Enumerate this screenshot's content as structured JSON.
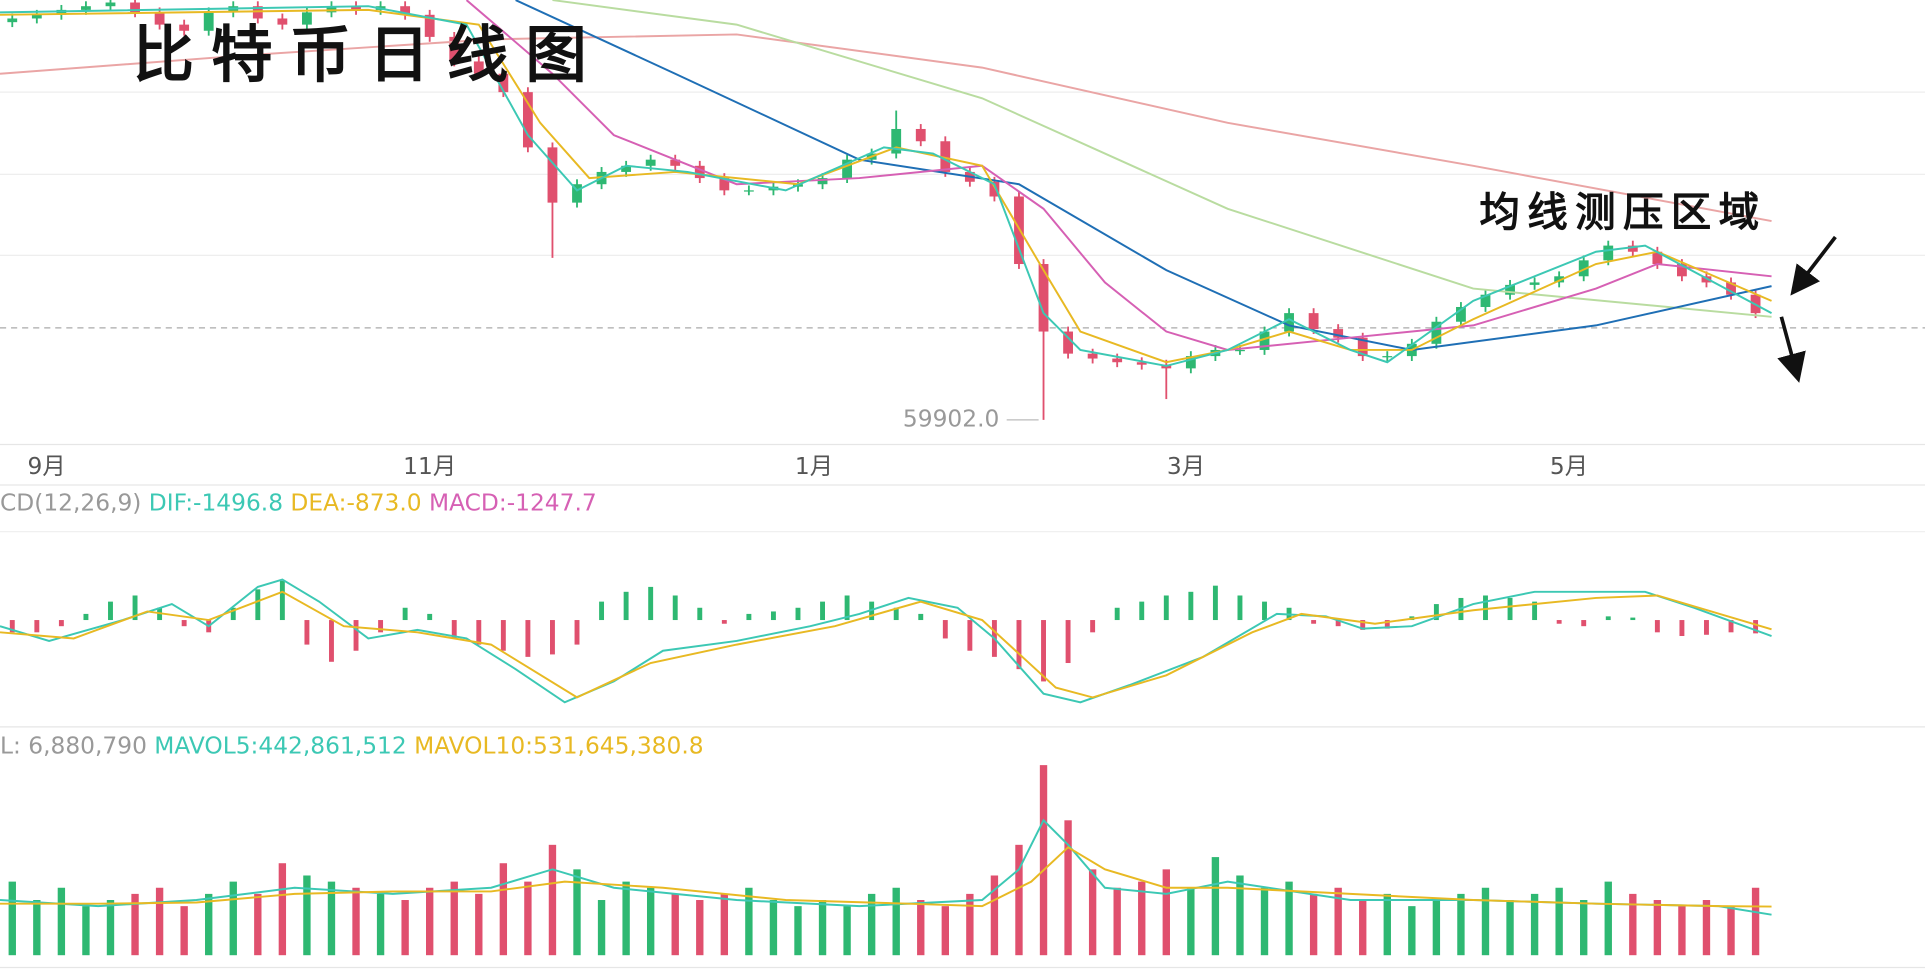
{
  "title": "比特币日线图",
  "annotation": "均线测压区域",
  "chart_data": [
    {
      "type": "candlestick",
      "xlim": [
        0,
        78.4
      ],
      "ylim": [
        57200,
        111200
      ],
      "xticks": [
        {
          "value": 1.9,
          "label": "9月"
        },
        {
          "value": 17.5,
          "label": "11月"
        },
        {
          "value": 33.15,
          "label": "1月"
        },
        {
          "value": 48.3,
          "label": "3月"
        },
        {
          "value": 63.9,
          "label": "5月"
        }
      ],
      "up_color": "#2eb872",
      "down_color": "#e0506e",
      "x": [
        0.5,
        1.5,
        2.5,
        3.5,
        4.5,
        5.5,
        6.5,
        7.5,
        8.5,
        9.5,
        10.5,
        11.5,
        12.5,
        13.5,
        14.5,
        15.5,
        16.5,
        17.5,
        18.5,
        19.5,
        20.5,
        21.5,
        22.5,
        23.5,
        24.5,
        25.5,
        26.5,
        27.5,
        28.5,
        29.5,
        30.5,
        31.5,
        32.5,
        33.5,
        34.5,
        35.5,
        36.5,
        37.5,
        38.5,
        39.5,
        40.5,
        41.5,
        42.5,
        43.5,
        44.5,
        45.5,
        46.5,
        47.5,
        48.5,
        49.5,
        50.5,
        51.5,
        52.5,
        53.5,
        54.5,
        55.5,
        56.5,
        57.5,
        58.5,
        59.5,
        60.5,
        61.5,
        62.5,
        63.5,
        64.5,
        65.5,
        66.5,
        67.5,
        68.5,
        69.5,
        70.5,
        71.5
      ],
      "open": [
        108500,
        108950,
        109400,
        110000,
        110450,
        110900,
        109700,
        108200,
        107450,
        109700,
        110450,
        108950,
        108200,
        109700,
        110450,
        110000,
        110450,
        109400,
        106700,
        103700,
        102200,
        99950,
        93200,
        86450,
        88700,
        90200,
        90950,
        91700,
        90950,
        89450,
        87950,
        87950,
        88400,
        88700,
        89450,
        91700,
        92450,
        95450,
        93950,
        90200,
        89000,
        87200,
        78950,
        70700,
        68000,
        67400,
        66950,
        66650,
        66200,
        67700,
        68450,
        68450,
        70700,
        72950,
        71000,
        69950,
        67700,
        67700,
        69200,
        71900,
        73700,
        75200,
        76400,
        76700,
        77450,
        79400,
        81200,
        80450,
        78950,
        77450,
        76700,
        75200
      ],
      "high": [
        109550,
        110000,
        110600,
        111050,
        111500,
        111500,
        110300,
        108800,
        110300,
        111050,
        111050,
        109550,
        110300,
        111050,
        111050,
        111050,
        111050,
        110000,
        107300,
        104300,
        102800,
        100550,
        93800,
        89300,
        90800,
        91550,
        92300,
        92300,
        91550,
        90050,
        88550,
        89000,
        89300,
        90050,
        92300,
        93050,
        97700,
        96050,
        94550,
        90800,
        89600,
        87800,
        79550,
        71300,
        68600,
        68000,
        67550,
        67250,
        68300,
        69050,
        69050,
        71300,
        73550,
        73550,
        71600,
        70550,
        68300,
        69800,
        72500,
        74300,
        75800,
        77000,
        77300,
        78050,
        80000,
        81800,
        81800,
        81050,
        79550,
        78050,
        77300,
        75800
      ],
      "low": [
        107900,
        108350,
        108800,
        109400,
        109850,
        109100,
        107600,
        106850,
        106850,
        109100,
        108350,
        107600,
        107600,
        109100,
        109400,
        109400,
        108800,
        106100,
        103100,
        101600,
        99350,
        92600,
        79700,
        85850,
        88100,
        89600,
        90350,
        90350,
        88850,
        87350,
        87350,
        87350,
        87800,
        88100,
        88850,
        91100,
        91850,
        93350,
        89600,
        88400,
        86600,
        78350,
        59900,
        67400,
        66800,
        66350,
        66050,
        62450,
        65600,
        67100,
        67850,
        67850,
        70100,
        70400,
        69350,
        67100,
        67100,
        67100,
        68600,
        71300,
        73100,
        74600,
        75800,
        76100,
        76850,
        78800,
        79850,
        78350,
        76850,
        76100,
        74600,
        72350
      ],
      "close": [
        108950,
        109400,
        110000,
        110450,
        110900,
        109700,
        108200,
        107450,
        109700,
        110450,
        108950,
        108200,
        109700,
        110450,
        110000,
        110450,
        109400,
        106700,
        103700,
        102200,
        99950,
        93200,
        86450,
        88700,
        90200,
        90950,
        91700,
        90950,
        89450,
        87950,
        87950,
        88400,
        88700,
        89450,
        91700,
        92450,
        95450,
        93950,
        90200,
        89000,
        87200,
        78950,
        70700,
        68000,
        67400,
        66950,
        66650,
        66200,
        67700,
        68450,
        68450,
        70700,
        72950,
        71000,
        69950,
        67700,
        67700,
        69200,
        71900,
        73700,
        75200,
        76400,
        76700,
        77450,
        79400,
        81200,
        80450,
        78950,
        77450,
        76700,
        75200,
        72950
      ],
      "lines": [
        {
          "color": "#eaa5a5",
          "x": [
            0,
            10,
            20,
            30,
            40,
            50,
            60,
            72.15
          ],
          "values": [
            102200,
            104450,
            106400,
            107000,
            102950,
            96200,
            90950,
            84200
          ]
        },
        {
          "color": "#b9dca0",
          "x": [
            22.5,
            30,
            40,
            50,
            60,
            72.15
          ],
          "values": [
            111200,
            108200,
            99200,
            85700,
            75950,
            72500
          ]
        },
        {
          "color": "#1f6fb5",
          "x": [
            21,
            27.5,
            35,
            41.5,
            47.5,
            52.5,
            57.5,
            65,
            72.15
          ],
          "values": [
            111200,
            102200,
            91700,
            88700,
            78200,
            71450,
            68450,
            71450,
            76250
          ]
        },
        {
          "color": "#d660b4",
          "x": [
            19,
            22.5,
            25,
            30,
            35,
            40,
            42.5,
            45,
            47.5,
            50,
            55,
            60,
            65,
            67.5,
            72.15
          ],
          "values": [
            111200,
            102200,
            94700,
            88700,
            89450,
            90950,
            85700,
            76700,
            70700,
            68450,
            69950,
            71450,
            75950,
            78950,
            77450
          ]
        },
        {
          "color": "#e8b923",
          "x": [
            0,
            15,
            19.5,
            22,
            24,
            27.5,
            32.5,
            36.5,
            40,
            42.5,
            44,
            47.5,
            50,
            52.5,
            55,
            57.5,
            60,
            65,
            67.5,
            72.15
          ],
          "values": [
            109400,
            110000,
            108200,
            96200,
            89450,
            90200,
            88700,
            93200,
            90950,
            78200,
            70700,
            66950,
            68450,
            70700,
            68450,
            68450,
            72200,
            78950,
            80450,
            74450
          ]
        },
        {
          "color": "#3cc8b4",
          "x": [
            0,
            15,
            19,
            21.5,
            23.5,
            25.5,
            28,
            32,
            36,
            38,
            40.5,
            42.5,
            44,
            47.5,
            50,
            52.5,
            55,
            56.5,
            60,
            65,
            67,
            72.15
          ],
          "values": [
            109700,
            110450,
            108200,
            94700,
            87950,
            90950,
            90200,
            87950,
            93200,
            92450,
            88700,
            72950,
            68450,
            66500,
            68450,
            72200,
            68450,
            66950,
            74450,
            80450,
            81200,
            72950
          ]
        }
      ],
      "price_line": 71150,
      "low_marker": {
        "value": 59902,
        "label": "59902.0"
      }
    },
    {
      "type": "macd",
      "indicator": "CD(12,26,9)",
      "xlim": [
        0,
        78.4
      ],
      "ylim": [
        -9775,
        7475
      ],
      "series": [
        {
          "name": "DIF:-1496.8",
          "color": "#3cc8b4",
          "x": [
            0,
            2,
            5,
            7,
            8.5,
            10.5,
            11.5,
            13,
            15,
            17,
            19,
            21,
            23,
            25,
            27,
            30,
            33,
            35,
            37,
            39,
            40.5,
            42.5,
            44,
            46,
            49,
            52,
            54,
            55.5,
            57.5,
            60,
            62.5,
            65,
            67,
            69,
            72.15
          ],
          "values": [
            -575,
            -1955,
            0,
            1495,
            -575,
            3105,
            3795,
            1725,
            -1725,
            -920,
            -1725,
            -4600,
            -7705,
            -5750,
            -2875,
            -1955,
            -575,
            575,
            2070,
            1150,
            -1725,
            -6900,
            -7705,
            -6095,
            -3450,
            575,
            345,
            -805,
            -575,
            1495,
            2645,
            2645,
            2645,
            1150,
            -1496.8
          ]
        },
        {
          "name": "DEA:-873.0",
          "color": "#e8b923",
          "x": [
            0,
            3,
            6,
            8.5,
            11.5,
            14,
            17,
            20,
            23.5,
            26.5,
            30,
            34,
            37.5,
            40,
            43,
            44.5,
            47.5,
            51,
            53,
            56,
            60,
            65,
            67.5,
            72.15
          ],
          "values": [
            -1150,
            -1725,
            805,
            0,
            2645,
            -575,
            -1150,
            -2300,
            -7245,
            -4025,
            -2300,
            -575,
            1725,
            0,
            -6325,
            -7245,
            -5175,
            -1150,
            575,
            -345,
            920,
            2070,
            2300,
            -873
          ]
        }
      ],
      "histogram": {
        "name": "MACD:-1247.7",
        "color": "#d660b4",
        "up_color": "#2eb872",
        "down_color": "#e0506e",
        "x": [
          0.5,
          1.5,
          2.5,
          3.5,
          4.5,
          5.5,
          6.5,
          7.5,
          8.5,
          9.5,
          10.5,
          11.5,
          12.5,
          13.5,
          14.5,
          15.5,
          16.5,
          17.5,
          18.5,
          19.5,
          20.5,
          21.5,
          22.5,
          23.5,
          24.5,
          25.5,
          26.5,
          27.5,
          28.5,
          29.5,
          30.5,
          31.5,
          32.5,
          33.5,
          34.5,
          35.5,
          36.5,
          37.5,
          38.5,
          39.5,
          40.5,
          41.5,
          42.5,
          43.5,
          44.5,
          45.5,
          46.5,
          47.5,
          48.5,
          49.5,
          50.5,
          51.5,
          52.5,
          53.5,
          54.5,
          55.5,
          56.5,
          57.5,
          58.5,
          59.5,
          60.5,
          61.5,
          62.5,
          63.5,
          64.5,
          65.5,
          66.5,
          67.5,
          68.5,
          69.5,
          70.5,
          71.5
        ],
        "values": [
          -1150,
          -1150,
          -575,
          575,
          1725,
          2300,
          1150,
          -575,
          -1150,
          1150,
          2875,
          3680,
          -2300,
          -3910,
          -2875,
          -1150,
          1150,
          575,
          -1725,
          -2300,
          -2875,
          -3450,
          -3220,
          -2300,
          1725,
          2645,
          3105,
          2300,
          1150,
          -345,
          575,
          805,
          1150,
          1725,
          2300,
          1725,
          1150,
          575,
          -1725,
          -2875,
          -3450,
          -4600,
          -5750,
          -4025,
          -1150,
          1150,
          1725,
          2300,
          2645,
          3220,
          2300,
          1725,
          1150,
          -345,
          -575,
          -920,
          -805,
          345,
          1495,
          2070,
          2300,
          2070,
          1725,
          -345,
          -575,
          345,
          230,
          -1150,
          -1495,
          -1380,
          -1150,
          -1247.7
        ]
      }
    },
    {
      "type": "volume",
      "label": "L: 6,880,790",
      "xlim": [
        0,
        78.4
      ],
      "ylim": [
        0,
        2200000000
      ],
      "x": [
        0.5,
        1.5,
        2.5,
        3.5,
        4.5,
        5.5,
        6.5,
        7.5,
        8.5,
        9.5,
        10.5,
        11.5,
        12.5,
        13.5,
        14.5,
        15.5,
        16.5,
        17.5,
        18.5,
        19.5,
        20.5,
        21.5,
        22.5,
        23.5,
        24.5,
        25.5,
        26.5,
        27.5,
        28.5,
        29.5,
        30.5,
        31.5,
        32.5,
        33.5,
        34.5,
        35.5,
        36.5,
        37.5,
        38.5,
        39.5,
        40.5,
        41.5,
        42.5,
        43.5,
        44.5,
        45.5,
        46.5,
        47.5,
        48.5,
        49.5,
        50.5,
        51.5,
        52.5,
        53.5,
        54.5,
        55.5,
        56.5,
        57.5,
        58.5,
        59.5,
        60.5,
        61.5,
        62.5,
        63.5,
        64.5,
        65.5,
        66.5,
        67.5,
        68.5,
        69.5,
        70.5,
        71.5
      ],
      "values": [
        804000000,
        603000000,
        737000000,
        536000000,
        603000000,
        670000000,
        737000000,
        536000000,
        670000000,
        804000000,
        670000000,
        1005000000,
        871000000,
        804000000,
        737000000,
        670000000,
        603000000,
        737000000,
        804000000,
        670000000,
        1005000000,
        804000000,
        1206000000,
        938000000,
        603000000,
        804000000,
        737000000,
        670000000,
        603000000,
        670000000,
        737000000,
        603000000,
        536000000,
        603000000,
        536000000,
        670000000,
        737000000,
        603000000,
        536000000,
        670000000,
        871000000,
        1206000000,
        2077000000,
        1474000000,
        938000000,
        737000000,
        804000000,
        938000000,
        737000000,
        1072000000,
        871000000,
        737000000,
        804000000,
        670000000,
        737000000,
        603000000,
        670000000,
        536000000,
        603000000,
        670000000,
        737000000,
        603000000,
        670000000,
        737000000,
        603000000,
        804000000,
        670000000,
        603000000,
        536000000,
        603000000,
        536000000,
        737000000
      ],
      "series": [
        {
          "name": "MAVOL5:442,861,512",
          "color": "#3cc8b4",
          "x": [
            0,
            4,
            8,
            12,
            16,
            20,
            22.5,
            25,
            30,
            35,
            40,
            41.5,
            42.5,
            43.5,
            45,
            47.5,
            50,
            55,
            60,
            65,
            70,
            72.15
          ],
          "values": [
            603000000,
            536000000,
            603000000,
            737000000,
            670000000,
            737000000,
            938000000,
            737000000,
            603000000,
            536000000,
            603000000,
            938000000,
            1474000000,
            1206000000,
            737000000,
            670000000,
            804000000,
            603000000,
            603000000,
            562800000,
            536000000,
            442861512
          ]
        },
        {
          "name": "MAVOL10:531,645,380.8",
          "color": "#e8b923",
          "x": [
            0,
            4,
            8,
            12,
            16,
            20,
            23,
            27,
            32,
            37,
            40,
            42,
            43.5,
            45,
            47.5,
            50,
            55,
            60,
            65,
            70,
            72.15
          ],
          "values": [
            562800000,
            562800000,
            576200000,
            670000000,
            696800000,
            696800000,
            804000000,
            737000000,
            603000000,
            562800000,
            536000000,
            804000000,
            1179200000,
            938000000,
            737000000,
            737000000,
            670000000,
            603000000,
            562800000,
            536000000,
            531645380.8
          ]
        }
      ]
    }
  ]
}
